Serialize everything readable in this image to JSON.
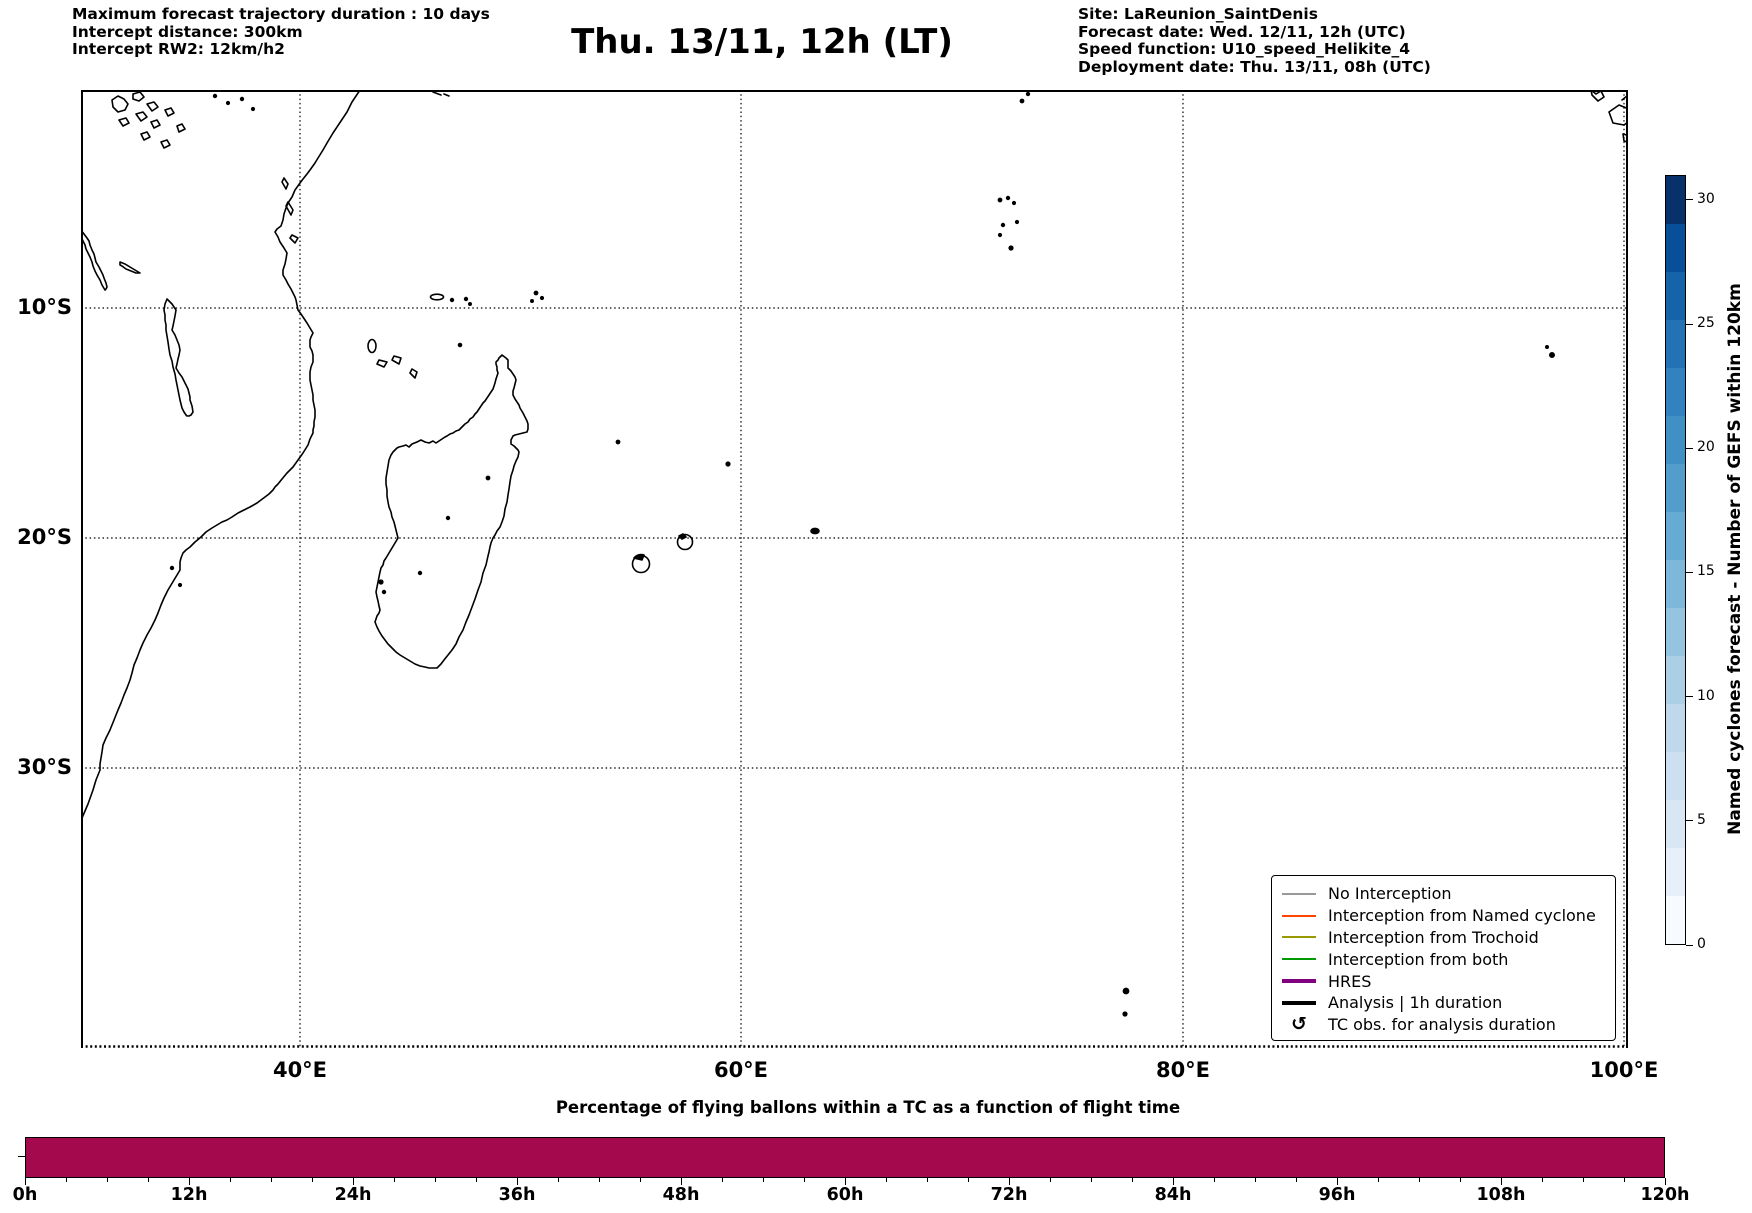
{
  "figure": {
    "top_left_lines": [
      "Maximum forecast trajectory duration : 10 days",
      "Intercept distance: 300km",
      "Intercept RW2: 12km/h2"
    ],
    "title": "Thu. 13/11, 12h (LT)",
    "top_right_lines": [
      "Site: LaReunion_SaintDenis",
      "Forecast date: Wed. 12/11, 12h (UTC)",
      "Speed function: U10_speed_Helikite_4",
      "Deployment date: Thu. 13/11, 08h (UTC)"
    ]
  },
  "map": {
    "x_tick_labels": [
      "40°E",
      "60°E",
      "80°E",
      "100°E"
    ],
    "y_tick_labels": [
      "10°S",
      "20°S",
      "30°S"
    ],
    "legend_items": [
      {
        "label": "No Interception",
        "color": "#999999",
        "kind": "line-thin"
      },
      {
        "label": "Interception from Named cyclone",
        "color": "#FF4500",
        "kind": "line-thin"
      },
      {
        "label": "Interception from Trochoid",
        "color": "#999900",
        "kind": "line-thin"
      },
      {
        "label": "Interception from both",
        "color": "#009900",
        "kind": "line-thin"
      },
      {
        "label": "HRES",
        "color": "#800080",
        "kind": "line-thick"
      },
      {
        "label": "Analysis | 1h duration",
        "color": "#000000",
        "kind": "line-thick"
      },
      {
        "label": "TC obs. for analysis duration",
        "symbol": "↺",
        "color": "#000000",
        "kind": "marker"
      }
    ]
  },
  "colorbar": {
    "label": "Named cyclones forecast - Number of GEFS within 120km",
    "tick_values": [
      0,
      5,
      10,
      15,
      20,
      25,
      30
    ],
    "value_range": [
      0,
      31
    ],
    "colors_low_to_high": [
      "#f7fbff",
      "#e7f0fa",
      "#d9e7f5",
      "#cde0f1",
      "#bfd8ec",
      "#abd0e6",
      "#94c4df",
      "#7db8da",
      "#66abd4",
      "#529dcc",
      "#4090c5",
      "#3182be",
      "#2272b5",
      "#1563a9",
      "#084f9a",
      "#08306b"
    ]
  },
  "chart_data": {
    "type": "bar",
    "title": "Percentage of flying ballons within a TC as a function of flight time",
    "x_tick_labels": [
      "0h",
      "12h",
      "24h",
      "36h",
      "48h",
      "60h",
      "72h",
      "84h",
      "96h",
      "108h",
      "120h"
    ],
    "x_range_hours": [
      0,
      120
    ],
    "x_major_tick_step_hours": 12,
    "x_minor_tick_step_hours": 3,
    "bar_color": "#A4084D",
    "series": [
      {
        "name": "flying ballons within a TC",
        "x_start_hours": 0,
        "x_end_hours": 120,
        "bar_relative_height": 1.0,
        "note": "solid full-height bar spanning the whole 0h-120h axis"
      }
    ]
  }
}
